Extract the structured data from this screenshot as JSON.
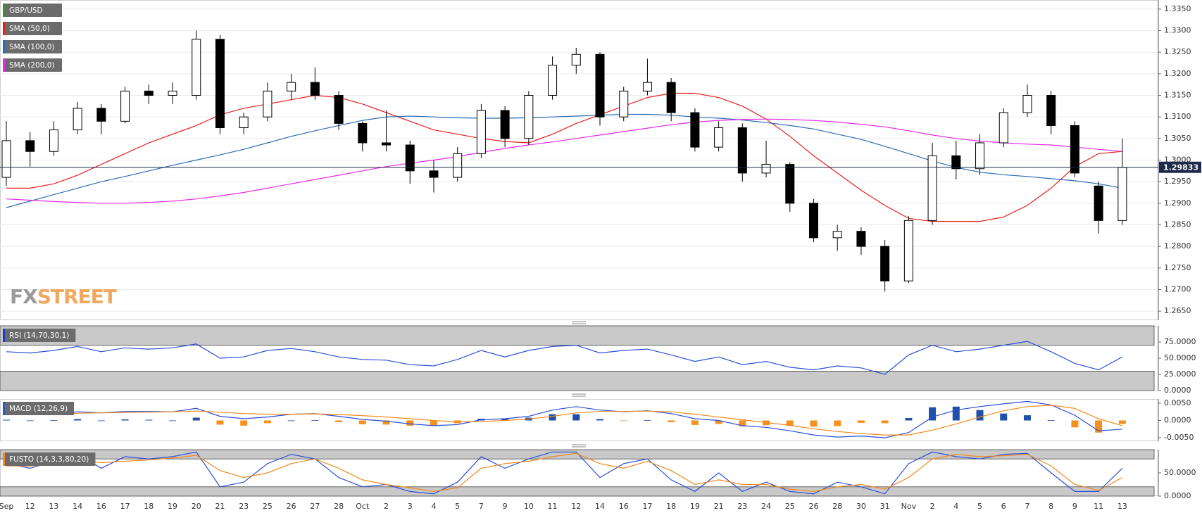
{
  "chart_data": [
    {
      "type": "candlestick",
      "name": "GBP/USD",
      "legend_color": "#3c8c3c",
      "categories": [
        "Sep",
        "12",
        "13",
        "14",
        "16",
        "17",
        "18",
        "19",
        "20",
        "21",
        "23",
        "25",
        "26",
        "27",
        "28",
        "Oct",
        "2",
        "3",
        "4",
        "5",
        "7",
        "9",
        "10",
        "11",
        "12",
        "14",
        "16",
        "17",
        "18",
        "19",
        "21",
        "23",
        "24",
        "25",
        "26",
        "28",
        "30",
        "31",
        "Nov",
        "2",
        "4",
        "5",
        "6",
        "7",
        "8",
        "9",
        "11",
        "13"
      ],
      "open": [
        1.296,
        1.3045,
        1.302,
        1.307,
        1.312,
        1.309,
        1.316,
        1.315,
        1.315,
        1.328,
        1.3075,
        1.31,
        1.316,
        1.318,
        1.315,
        1.3085,
        1.304,
        1.3035,
        1.2975,
        1.296,
        1.3015,
        1.3115,
        1.305,
        1.315,
        1.322,
        1.3245,
        1.31,
        1.316,
        1.318,
        1.311,
        1.303,
        1.3075,
        1.297,
        1.299,
        1.29,
        1.282,
        1.2835,
        1.28,
        1.272,
        1.286,
        1.301,
        1.298,
        1.304,
        1.311,
        1.315,
        1.308,
        1.294,
        1.286
      ],
      "high": [
        1.309,
        1.3065,
        1.309,
        1.3135,
        1.313,
        1.317,
        1.3175,
        1.318,
        1.33,
        1.329,
        1.311,
        1.318,
        1.32,
        1.3215,
        1.316,
        1.309,
        1.3115,
        1.3045,
        1.3,
        1.303,
        1.313,
        1.3125,
        1.316,
        1.324,
        1.326,
        1.325,
        1.317,
        1.3235,
        1.319,
        1.312,
        1.309,
        1.3085,
        1.3045,
        1.2995,
        1.291,
        1.285,
        1.2845,
        1.2815,
        1.287,
        1.304,
        1.3045,
        1.306,
        1.312,
        1.3175,
        1.316,
        1.309,
        1.295,
        1.305
      ],
      "low": [
        1.294,
        1.2985,
        1.301,
        1.306,
        1.306,
        1.3085,
        1.313,
        1.313,
        1.314,
        1.306,
        1.306,
        1.309,
        1.314,
        1.314,
        1.307,
        1.302,
        1.302,
        1.2945,
        1.2925,
        1.295,
        1.3005,
        1.303,
        1.3035,
        1.314,
        1.32,
        1.308,
        1.309,
        1.315,
        1.309,
        1.302,
        1.302,
        1.295,
        1.296,
        1.288,
        1.281,
        1.279,
        1.278,
        1.2695,
        1.2715,
        1.285,
        1.2955,
        1.2965,
        1.303,
        1.31,
        1.306,
        1.296,
        1.283,
        1.285
      ],
      "close": [
        1.3045,
        1.302,
        1.307,
        1.312,
        1.309,
        1.316,
        1.315,
        1.316,
        1.328,
        1.3075,
        1.31,
        1.316,
        1.318,
        1.315,
        1.3085,
        1.304,
        1.3035,
        1.2975,
        1.296,
        1.3015,
        1.3115,
        1.305,
        1.315,
        1.322,
        1.3245,
        1.31,
        1.316,
        1.318,
        1.311,
        1.303,
        1.3075,
        1.297,
        1.299,
        1.29,
        1.282,
        1.2835,
        1.28,
        1.272,
        1.286,
        1.301,
        1.298,
        1.304,
        1.311,
        1.315,
        1.308,
        1.297,
        1.286,
        1.2983
      ],
      "bull_color": "#ffffff",
      "bear_color": "#000000",
      "series": [
        {
          "name": "SMA (50,0)",
          "color": "#e8201c",
          "values": [
            1.2935,
            1.2935,
            1.2945,
            1.2965,
            1.299,
            1.3015,
            1.304,
            1.306,
            1.308,
            1.3105,
            1.312,
            1.313,
            1.314,
            1.315,
            1.3145,
            1.313,
            1.311,
            1.309,
            1.307,
            1.306,
            1.305,
            1.3043,
            1.304,
            1.306,
            1.3085,
            1.3105,
            1.3125,
            1.3145,
            1.3155,
            1.3155,
            1.3145,
            1.3125,
            1.3095,
            1.3055,
            1.301,
            1.297,
            1.293,
            1.2895,
            1.2865,
            1.2858,
            1.2858,
            1.2858,
            1.2868,
            1.2895,
            1.2935,
            1.2985,
            1.3015,
            1.302
          ]
        },
        {
          "name": "SMA (100,0)",
          "color": "#2a6cb5",
          "values": [
            1.289,
            1.2905,
            1.292,
            1.2935,
            1.295,
            1.2962,
            1.2975,
            1.2988,
            1.3,
            1.3012,
            1.3025,
            1.304,
            1.3055,
            1.3068,
            1.308,
            1.3092,
            1.31,
            1.3102,
            1.31,
            1.3098,
            1.3097,
            1.3097,
            1.3098,
            1.31,
            1.3102,
            1.3104,
            1.3106,
            1.3106,
            1.3104,
            1.31,
            1.3097,
            1.3093,
            1.3087,
            1.308,
            1.3072,
            1.306,
            1.3048,
            1.3032,
            1.3015,
            1.2998,
            1.2983,
            1.2972,
            1.2966,
            1.2962,
            1.2957,
            1.2952,
            1.2945,
            1.2935
          ]
        },
        {
          "name": "SMA (200,0)",
          "color": "#e52ae5",
          "values": [
            1.291,
            1.2907,
            1.2904,
            1.2902,
            1.29,
            1.29,
            1.2902,
            1.2905,
            1.291,
            1.2917,
            1.2925,
            1.2935,
            1.2945,
            1.2955,
            1.2965,
            1.2975,
            1.2985,
            1.2993,
            1.3,
            1.3008,
            1.3018,
            1.3027,
            1.3035,
            1.3042,
            1.305,
            1.3058,
            1.3066,
            1.3074,
            1.3082,
            1.3088,
            1.3092,
            1.3094,
            1.3095,
            1.3094,
            1.3092,
            1.3088,
            1.3083,
            1.3077,
            1.3068,
            1.3058,
            1.305,
            1.3044,
            1.304,
            1.3037,
            1.3035,
            1.303,
            1.3025,
            1.302
          ]
        }
      ],
      "last_price": 1.29833,
      "last_price_color": "#1e2a4a",
      "ylim": [
        1.2629,
        1.3371
      ],
      "yticks": [
        {
          "value": 1.265,
          "label": "1.2650"
        },
        {
          "value": 1.27,
          "label": "1.2700"
        },
        {
          "value": 1.275,
          "label": "1.2750"
        },
        {
          "value": 1.28,
          "label": "1.2800"
        },
        {
          "value": 1.285,
          "label": "1.2850"
        },
        {
          "value": 1.29,
          "label": "1.2900"
        },
        {
          "value": 1.295,
          "label": "1.2950"
        },
        {
          "value": 1.3,
          "label": "1.3000"
        },
        {
          "value": 1.305,
          "label": "1.3050"
        },
        {
          "value": 1.31,
          "label": "1.3100"
        },
        {
          "value": 1.315,
          "label": "1.3150"
        },
        {
          "value": 1.32,
          "label": "1.3200"
        },
        {
          "value": 1.325,
          "label": "1.3250"
        },
        {
          "value": 1.33,
          "label": "1.3300"
        },
        {
          "value": 1.335,
          "label": "1.3350"
        }
      ],
      "grid": true,
      "watermark": [
        "FX",
        "STREET"
      ]
    },
    {
      "type": "line",
      "name": "RSI (14,70,30,1)",
      "legend_color": "#1a3cc8",
      "series": [
        {
          "color": "#2b4fd6",
          "values": [
            60,
            58,
            62,
            68,
            60,
            66,
            64,
            66,
            72,
            50,
            52,
            62,
            65,
            60,
            52,
            48,
            47,
            40,
            38,
            48,
            62,
            52,
            62,
            68,
            70,
            58,
            62,
            64,
            55,
            45,
            52,
            40,
            45,
            36,
            32,
            38,
            35,
            25,
            55,
            70,
            60,
            64,
            70,
            76,
            60,
            42,
            32,
            52
          ]
        }
      ],
      "bands": [
        [
          70,
          100
        ],
        [
          0,
          30
        ]
      ],
      "ylim": [
        0,
        100
      ],
      "yticks": [
        {
          "value": 0,
          "label": "0.0000"
        },
        {
          "value": 25,
          "label": "25.0000"
        },
        {
          "value": 50,
          "label": "50.0000"
        },
        {
          "value": 75,
          "label": "75.0000"
        }
      ]
    },
    {
      "type": "macd",
      "name": "MACD (12,26,9)",
      "legend_color": "#2a5cc0",
      "series": [
        {
          "color": "#2b4fd6",
          "values": [
            0.002,
            0.0018,
            0.002,
            0.0025,
            0.0022,
            0.0026,
            0.0026,
            0.0025,
            0.0035,
            0.0012,
            0.0005,
            0.001,
            0.0018,
            0.002,
            0.0012,
            0.0003,
            -0.0002,
            -0.001,
            -0.0015,
            -0.0012,
            0.0002,
            0.0005,
            0.0012,
            0.003,
            0.004,
            0.003,
            0.0025,
            0.0028,
            0.002,
            0.0005,
            0.0,
            -0.0015,
            -0.002,
            -0.003,
            -0.0042,
            -0.0048,
            -0.0045,
            -0.005,
            -0.0035,
            0.001,
            0.003,
            0.004,
            0.0048,
            0.0055,
            0.0045,
            0.0015,
            -0.003,
            -0.0025
          ]
        },
        {
          "color": "#f08a1e",
          "values": [
            0.0018,
            0.0018,
            0.0019,
            0.0021,
            0.0022,
            0.0023,
            0.0024,
            0.0025,
            0.0027,
            0.0024,
            0.002,
            0.0018,
            0.0018,
            0.0019,
            0.0017,
            0.0014,
            0.001,
            0.0005,
            0.0,
            -0.0004,
            -0.0003,
            0.0,
            0.0004,
            0.0012,
            0.0022,
            0.0026,
            0.0026,
            0.0027,
            0.0025,
            0.0018,
            0.001,
            0.0002,
            -0.0006,
            -0.0014,
            -0.0024,
            -0.0032,
            -0.0038,
            -0.0042,
            -0.0042,
            -0.0028,
            -0.001,
            0.001,
            0.0028,
            0.004,
            0.0044,
            0.0035,
            0.0005,
            -0.0015
          ]
        }
      ],
      "histogram": {
        "positive_color": "#1f4fa8",
        "negative_color": "#f5901e",
        "values": [
          0.0002,
          0,
          0.0001,
          0.0004,
          0,
          0.0003,
          0.0002,
          0,
          0.0008,
          -0.0012,
          -0.0015,
          -0.0008,
          0,
          0.0001,
          -0.0005,
          -0.0011,
          -0.0012,
          -0.0015,
          -0.0015,
          -0.0008,
          0.0005,
          0.0005,
          0.0008,
          0.0018,
          0.0018,
          0.0004,
          -0.0001,
          0.0001,
          -0.0005,
          -0.0013,
          -0.001,
          -0.0017,
          -0.0014,
          -0.0016,
          -0.0018,
          -0.0016,
          -0.0007,
          -0.0008,
          0.0007,
          0.0038,
          0.004,
          0.003,
          0.002,
          0.0015,
          0.0001,
          -0.002,
          -0.0035,
          -0.001
        ]
      },
      "ylim": [
        -0.006,
        0.0062
      ],
      "yticks": [
        {
          "value": -0.005,
          "label": "-0.0050"
        },
        {
          "value": 0,
          "label": "0.0000"
        },
        {
          "value": 0.005,
          "label": "0.0050"
        }
      ]
    },
    {
      "type": "line",
      "name": "FUSTO (14,3,3,80,20)",
      "legend_color": "#f08a1e",
      "series": [
        {
          "color": "#2b4fd6",
          "values": [
            70,
            60,
            75,
            90,
            60,
            85,
            80,
            85,
            95,
            20,
            30,
            70,
            90,
            80,
            40,
            20,
            25,
            10,
            5,
            30,
            85,
            60,
            80,
            95,
            95,
            40,
            70,
            80,
            35,
            10,
            50,
            10,
            30,
            10,
            5,
            30,
            20,
            5,
            70,
            95,
            85,
            80,
            90,
            92,
            50,
            10,
            10,
            60
          ]
        },
        {
          "color": "#f08a1e",
          "values": [
            65,
            65,
            68,
            78,
            72,
            75,
            78,
            82,
            88,
            55,
            40,
            50,
            70,
            80,
            60,
            35,
            25,
            18,
            10,
            18,
            60,
            70,
            75,
            85,
            92,
            70,
            60,
            75,
            55,
            25,
            35,
            25,
            25,
            15,
            10,
            20,
            25,
            15,
            40,
            80,
            90,
            85,
            87,
            90,
            65,
            25,
            12,
            40
          ]
        }
      ],
      "bands": [
        [
          80,
          100
        ],
        [
          0,
          20
        ]
      ],
      "ylim": [
        0,
        100
      ],
      "yticks": [
        {
          "value": 0,
          "label": "0.0000"
        },
        {
          "value": 50,
          "label": "50.0000"
        }
      ]
    }
  ]
}
